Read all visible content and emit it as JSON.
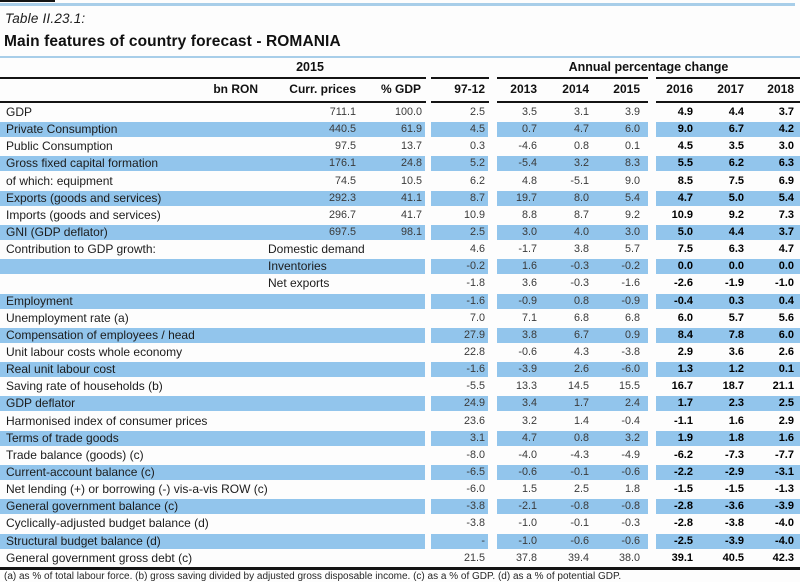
{
  "meta": {
    "table_label": "Table II.23.1:",
    "title": "Main features of country forecast - ROMANIA"
  },
  "header": {
    "group_2015": "2015",
    "group_apc": "Annual percentage change",
    "columns": [
      "bn RON",
      "Curr. prices",
      "% GDP",
      "97-12",
      "2013",
      "2014",
      "2015",
      "2016",
      "2017",
      "2018"
    ]
  },
  "colors": {
    "band_blue": "#92c5ec",
    "rule_blue": "#a8cee9",
    "rule_black": "#141414",
    "forecast_text": "#000000",
    "history_text": "#3a3a3a"
  },
  "table": {
    "rows": [
      {
        "label": "GDP",
        "sub": "",
        "cells": [
          "711.1",
          "100.0",
          "2.5",
          "3.5",
          "3.1",
          "3.9",
          "4.9",
          "4.4",
          "3.7"
        ]
      },
      {
        "label": "Private Consumption",
        "sub": "",
        "cells": [
          "440.5",
          "61.9",
          "4.5",
          "0.7",
          "4.7",
          "6.0",
          "9.0",
          "6.7",
          "4.2"
        ]
      },
      {
        "label": "Public Consumption",
        "sub": "",
        "cells": [
          "97.5",
          "13.7",
          "0.3",
          "-4.6",
          "0.8",
          "0.1",
          "4.5",
          "3.5",
          "3.0"
        ]
      },
      {
        "label": "Gross fixed capital formation",
        "sub": "",
        "cells": [
          "176.1",
          "24.8",
          "5.2",
          "-5.4",
          "3.2",
          "8.3",
          "5.5",
          "6.2",
          "6.3"
        ]
      },
      {
        "label": "of which: equipment",
        "sub": "",
        "cells": [
          "74.5",
          "10.5",
          "6.2",
          "4.8",
          "-5.1",
          "9.0",
          "8.5",
          "7.5",
          "6.9"
        ]
      },
      {
        "label": "Exports (goods and services)",
        "sub": "",
        "cells": [
          "292.3",
          "41.1",
          "8.7",
          "19.7",
          "8.0",
          "5.4",
          "4.7",
          "5.0",
          "5.4"
        ]
      },
      {
        "label": "Imports (goods and services)",
        "sub": "",
        "cells": [
          "296.7",
          "41.7",
          "10.9",
          "8.8",
          "8.7",
          "9.2",
          "10.9",
          "9.2",
          "7.3"
        ]
      },
      {
        "label": "GNI (GDP deflator)",
        "sub": "",
        "cells": [
          "697.5",
          "98.1",
          "2.5",
          "3.0",
          "4.0",
          "3.0",
          "5.0",
          "4.4",
          "3.7"
        ]
      },
      {
        "label": "Contribution to GDP growth:",
        "sub": "Domestic demand",
        "cells": [
          "",
          "",
          "4.6",
          "-1.7",
          "3.8",
          "5.7",
          "7.5",
          "6.3",
          "4.7"
        ]
      },
      {
        "label": "",
        "sub": "Inventories",
        "cells": [
          "",
          "",
          "-0.2",
          "1.6",
          "-0.3",
          "-0.2",
          "0.0",
          "0.0",
          "0.0"
        ]
      },
      {
        "label": "",
        "sub": "Net exports",
        "cells": [
          "",
          "",
          "-1.8",
          "3.6",
          "-0.3",
          "-1.6",
          "-2.6",
          "-1.9",
          "-1.0"
        ]
      },
      {
        "label": "Employment",
        "sub": "",
        "cells": [
          "",
          "",
          "-1.6",
          "-0.9",
          "0.8",
          "-0.9",
          "-0.4",
          "0.3",
          "0.4"
        ]
      },
      {
        "label": "Unemployment rate (a)",
        "sub": "",
        "cells": [
          "",
          "",
          "7.0",
          "7.1",
          "6.8",
          "6.8",
          "6.0",
          "5.7",
          "5.6"
        ]
      },
      {
        "label": "Compensation of employees / head",
        "sub": "",
        "cells": [
          "",
          "",
          "27.9",
          "3.8",
          "6.7",
          "0.9",
          "8.4",
          "7.8",
          "6.0"
        ]
      },
      {
        "label": "Unit labour costs whole economy",
        "sub": "",
        "cells": [
          "",
          "",
          "22.8",
          "-0.6",
          "4.3",
          "-3.8",
          "2.9",
          "3.6",
          "2.6"
        ]
      },
      {
        "label": "Real unit labour cost",
        "sub": "",
        "cells": [
          "",
          "",
          "-1.6",
          "-3.9",
          "2.6",
          "-6.0",
          "1.3",
          "1.2",
          "0.1"
        ]
      },
      {
        "label": "Saving rate of households (b)",
        "sub": "",
        "cells": [
          "",
          "",
          "-5.5",
          "13.3",
          "14.5",
          "15.5",
          "16.7",
          "18.7",
          "21.1"
        ]
      },
      {
        "label": "GDP deflator",
        "sub": "",
        "cells": [
          "",
          "",
          "24.9",
          "3.4",
          "1.7",
          "2.4",
          "1.7",
          "2.3",
          "2.5"
        ]
      },
      {
        "label": "Harmonised index of consumer prices",
        "sub": "",
        "cells": [
          "",
          "",
          "23.6",
          "3.2",
          "1.4",
          "-0.4",
          "-1.1",
          "1.6",
          "2.9"
        ]
      },
      {
        "label": "Terms of trade goods",
        "sub": "",
        "cells": [
          "",
          "",
          "3.1",
          "4.7",
          "0.8",
          "3.2",
          "1.9",
          "1.8",
          "1.6"
        ]
      },
      {
        "label": "Trade balance (goods) (c)",
        "sub": "",
        "cells": [
          "",
          "",
          "-8.0",
          "-4.0",
          "-4.3",
          "-4.9",
          "-6.2",
          "-7.3",
          "-7.7"
        ]
      },
      {
        "label": "Current-account balance (c)",
        "sub": "",
        "cells": [
          "",
          "",
          "-6.5",
          "-0.6",
          "-0.1",
          "-0.6",
          "-2.2",
          "-2.9",
          "-3.1"
        ]
      },
      {
        "label": "Net lending (+) or borrowing (-) vis-a-vis ROW (c)",
        "sub": "",
        "cells": [
          "",
          "",
          "-6.0",
          "1.5",
          "2.5",
          "1.8",
          "-1.5",
          "-1.5",
          "-1.3"
        ]
      },
      {
        "label": "General government balance (c)",
        "sub": "",
        "cells": [
          "",
          "",
          "-3.8",
          "-2.1",
          "-0.8",
          "-0.8",
          "-2.8",
          "-3.6",
          "-3.9"
        ]
      },
      {
        "label": "Cyclically-adjusted budget balance (d)",
        "sub": "",
        "cells": [
          "",
          "",
          "-3.8",
          "-1.0",
          "-0.1",
          "-0.3",
          "-2.8",
          "-3.8",
          "-4.0"
        ]
      },
      {
        "label": "Structural budget balance (d)",
        "sub": "",
        "cells": [
          "",
          "",
          "-",
          "-1.0",
          "-0.6",
          "-0.6",
          "-2.5",
          "-3.9",
          "-4.0"
        ]
      },
      {
        "label": "General government gross debt (c)",
        "sub": "",
        "cells": [
          "",
          "",
          "21.5",
          "37.8",
          "39.4",
          "38.0",
          "39.1",
          "40.5",
          "42.3"
        ]
      }
    ]
  },
  "footnote": "(a) as % of total labour force. (b) gross saving divided by adjusted gross disposable income.  (c) as a % of  GDP. (d) as a % of  potential GDP."
}
